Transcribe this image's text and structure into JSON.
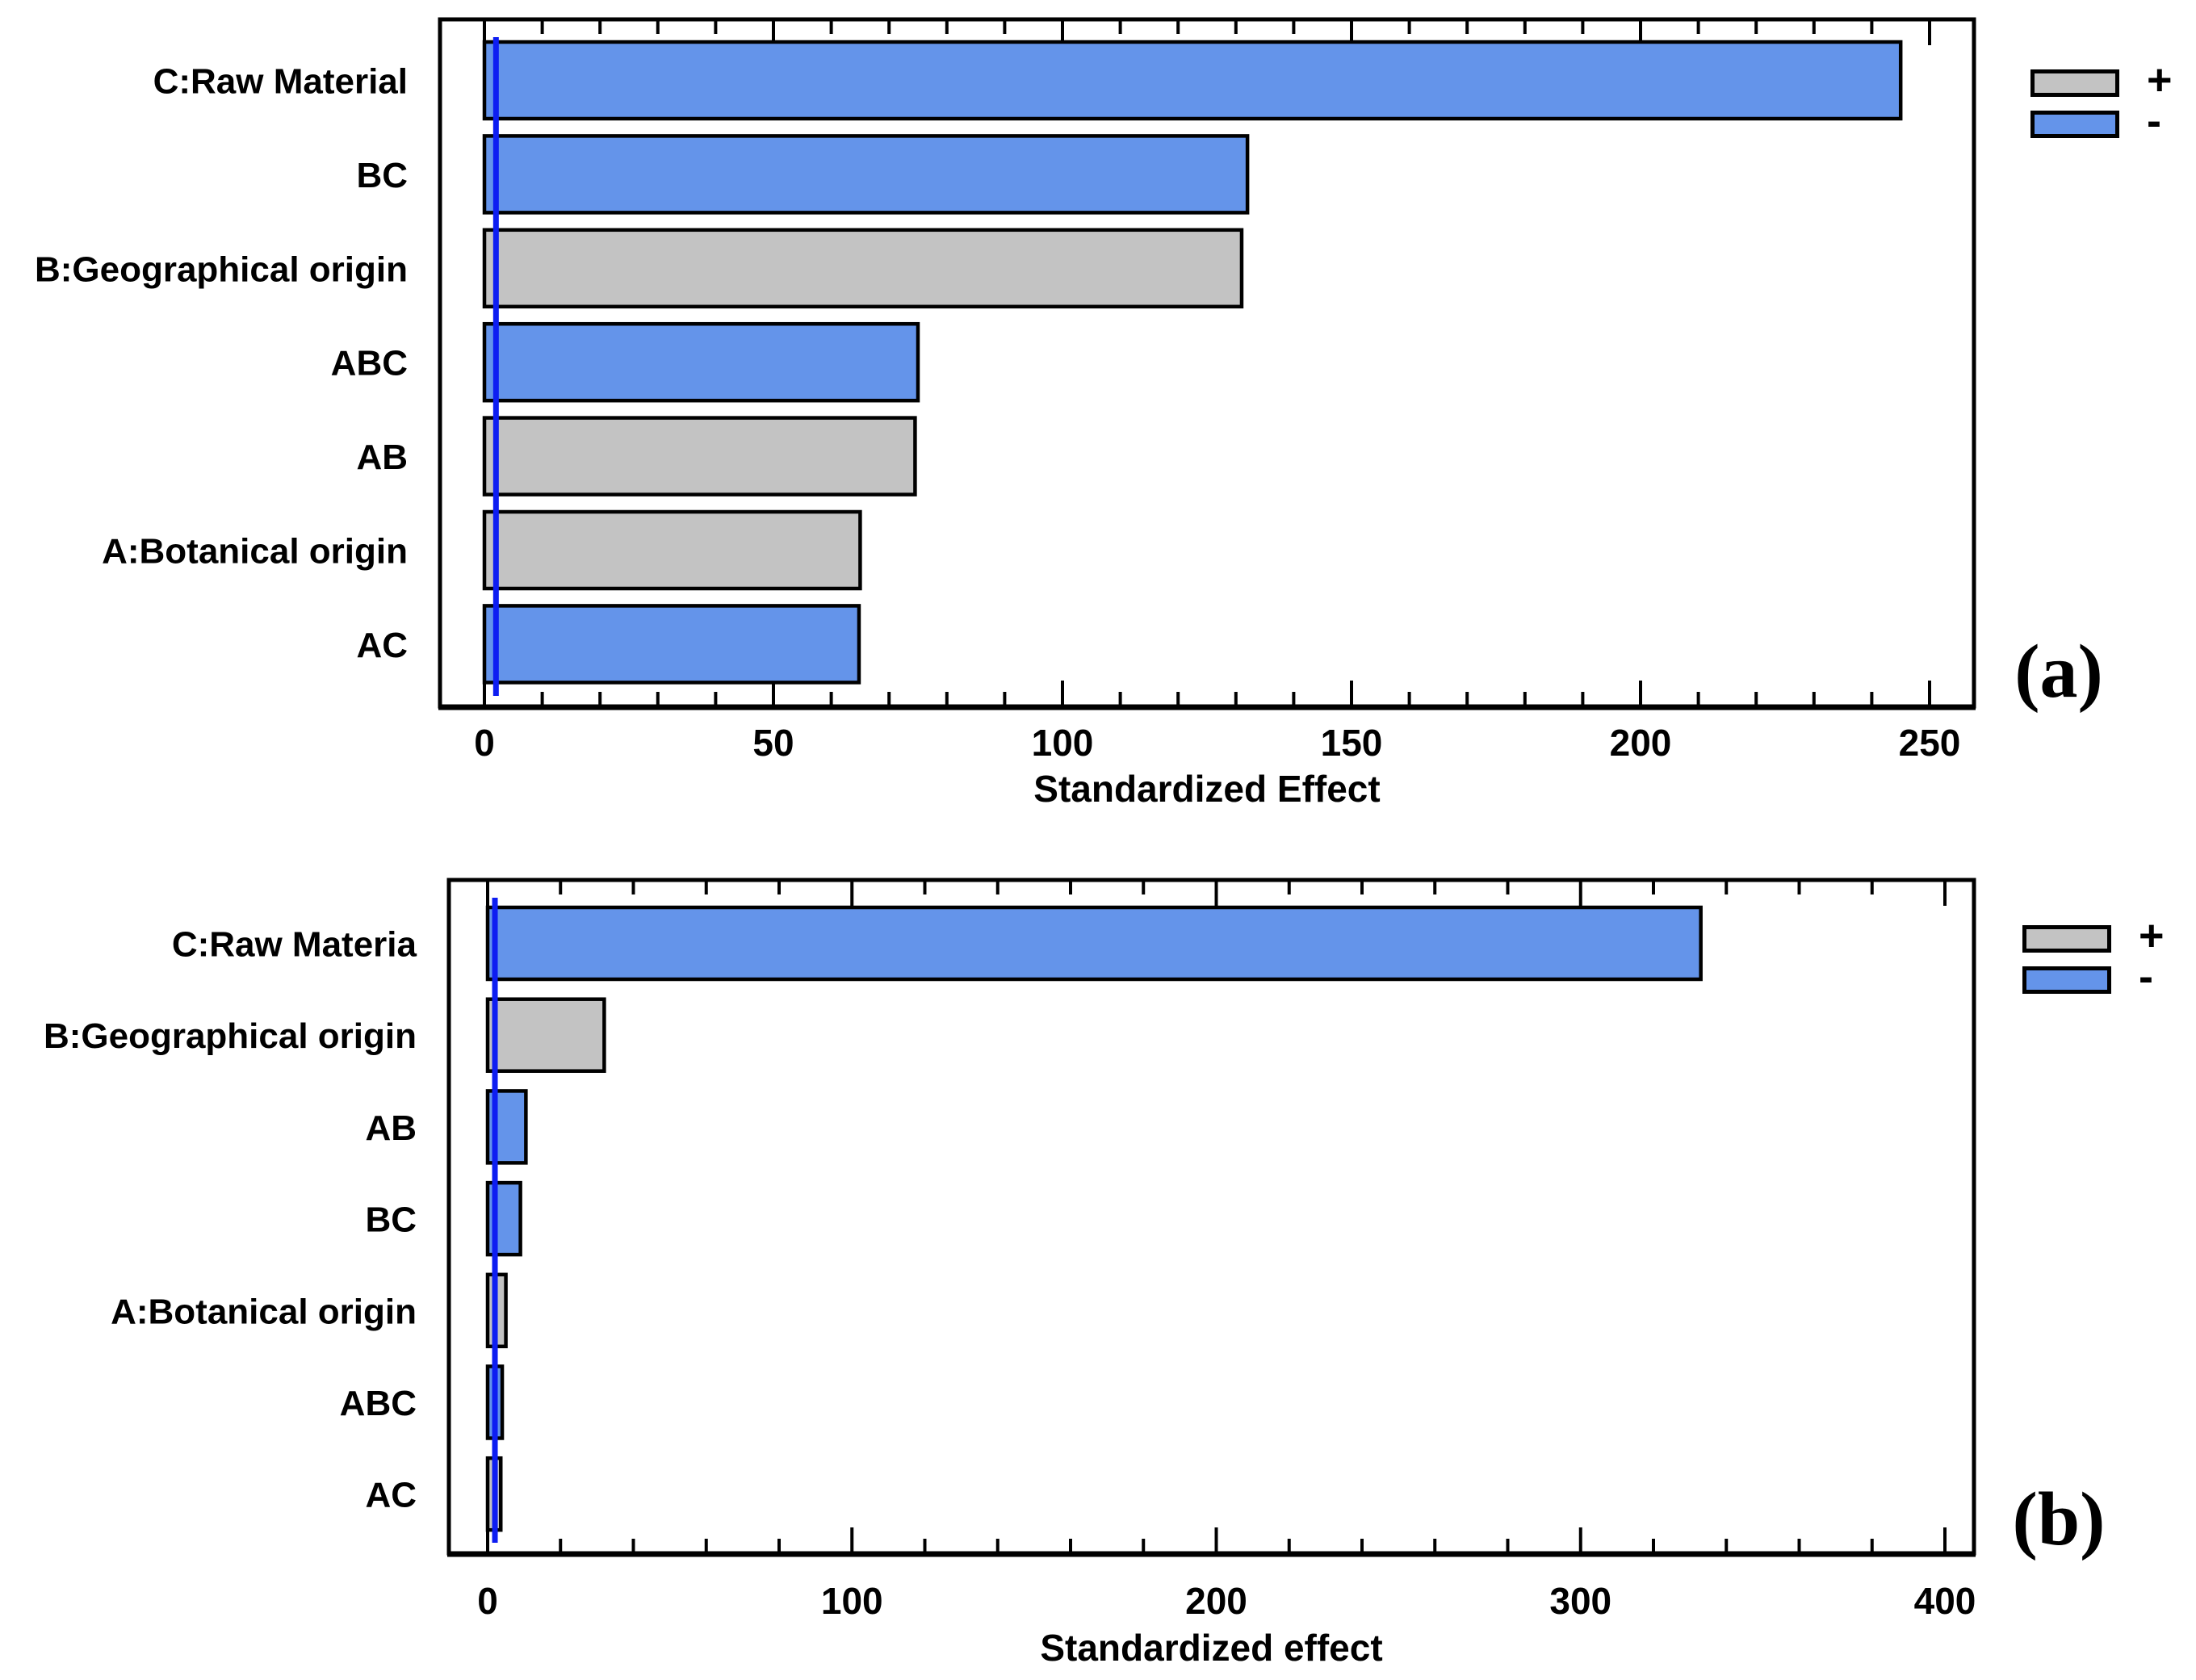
{
  "colors": {
    "positive": "#c3c3c3",
    "negative": "#6494ea",
    "reference_line": "#0d1df2",
    "bar_border": "#000000",
    "axis": "#000000",
    "background": "#ffffff"
  },
  "chart_data": [
    {
      "type": "bar",
      "orientation": "horizontal",
      "panel_label": "(a)",
      "xlabel": "Standardized Effect",
      "categories": [
        "C:Raw Material",
        "BC",
        "B:Geographical origin",
        "ABC",
        "AB",
        "A:Botanical origin",
        "AC"
      ],
      "values": [
        245,
        132,
        131,
        75,
        74.5,
        65,
        64.8
      ],
      "signs": [
        "-",
        "-",
        "+",
        "-",
        "+",
        "+",
        "-"
      ],
      "series": [
        {
          "name": "+",
          "meaning": "positive effect",
          "color_key": "positive"
        },
        {
          "name": "-",
          "meaning": "negative effect",
          "color_key": "negative"
        }
      ],
      "x_ticks": [
        0,
        50,
        100,
        150,
        200,
        250
      ],
      "x_tick_labels": [
        "0",
        "50",
        "100",
        "150",
        "200",
        "250"
      ],
      "x_minor_step": 10,
      "xlim": [
        0,
        258
      ],
      "reference_line_x": 2,
      "grid": false,
      "legend": {
        "position": "top-right-outside",
        "entries": [
          {
            "label": "+",
            "color_key": "positive"
          },
          {
            "label": "-",
            "color_key": "negative"
          }
        ]
      }
    },
    {
      "type": "bar",
      "orientation": "horizontal",
      "panel_label": "(b)",
      "xlabel": "Standardized effect",
      "categories": [
        "C:Raw Materia",
        "B:Geographical origin",
        "AB",
        "BC",
        "A:Botanical origin",
        "ABC",
        "AC"
      ],
      "values": [
        333,
        32,
        10.5,
        9,
        5,
        4,
        3.6
      ],
      "signs": [
        "-",
        "+",
        "-",
        "-",
        "+",
        "-",
        "+"
      ],
      "series": [
        {
          "name": "+",
          "meaning": "positive effect",
          "color_key": "positive"
        },
        {
          "name": "-",
          "meaning": "negative effect",
          "color_key": "negative"
        }
      ],
      "x_ticks": [
        0,
        100,
        200,
        300,
        400
      ],
      "x_tick_labels": [
        "0",
        "100",
        "200",
        "300",
        "400"
      ],
      "x_minor_step": 20,
      "xlim": [
        0,
        408
      ],
      "reference_line_x": 2,
      "grid": false,
      "legend": {
        "position": "top-right-outside",
        "entries": [
          {
            "label": "+",
            "color_key": "positive"
          },
          {
            "label": "-",
            "color_key": "negative"
          }
        ]
      }
    }
  ]
}
